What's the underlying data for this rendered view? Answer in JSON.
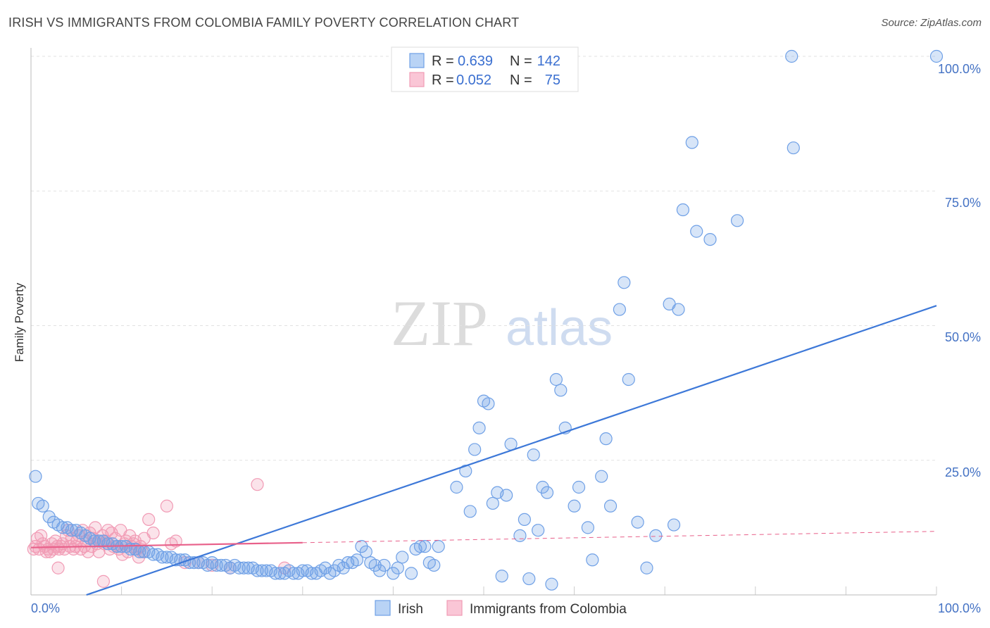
{
  "title": "IRISH VS IMMIGRANTS FROM COLOMBIA FAMILY POVERTY CORRELATION CHART",
  "source": "Source: ZipAtlas.com",
  "watermark": {
    "zip": "ZIP",
    "atlas": "atlas"
  },
  "chart_data": {
    "type": "scatter",
    "title": "IRISH VS IMMIGRANTS FROM COLOMBIA FAMILY POVERTY CORRELATION CHART",
    "xlabel": "",
    "ylabel": "Family Poverty",
    "xlim": [
      0,
      100
    ],
    "ylim": [
      0,
      100
    ],
    "x_tick_labels": [
      "0.0%",
      "100.0%"
    ],
    "y_tick_labels": [
      {
        "value": 25,
        "label": "25.0%"
      },
      {
        "value": 50,
        "label": "50.0%"
      },
      {
        "value": 75,
        "label": "75.0%"
      },
      {
        "value": 100,
        "label": "100.0%"
      }
    ],
    "grid": true,
    "legend": {
      "position": "top-center",
      "entries": [
        {
          "name": "Irish",
          "r_label": "R =",
          "r": "0.639",
          "n_label": "N =",
          "n": "142"
        },
        {
          "name": "Immigrants from Colombia",
          "r_label": "R =",
          "r": "0.052",
          "n_label": "N =",
          "n": "75"
        }
      ]
    },
    "colors": {
      "irish": "#6fa0e6",
      "irish_line": "#3d78d8",
      "colombia": "#f19bb5",
      "colombia_line": "#e8608a",
      "tick": "#4472c4"
    },
    "series": [
      {
        "name": "Irish",
        "trend": {
          "x": [
            0,
            100
          ],
          "y": [
            -3.5,
            53.7
          ],
          "solid_until": 100
        },
        "points": [
          [
            0.5,
            22
          ],
          [
            0.8,
            17
          ],
          [
            1.3,
            16.5
          ],
          [
            2,
            14.5
          ],
          [
            2.5,
            13.5
          ],
          [
            3,
            13
          ],
          [
            3.5,
            12.5
          ],
          [
            4,
            12.5
          ],
          [
            4.5,
            12
          ],
          [
            5,
            12
          ],
          [
            5.5,
            11.5
          ],
          [
            6,
            11
          ],
          [
            6.5,
            10.5
          ],
          [
            7,
            10
          ],
          [
            7.5,
            10
          ],
          [
            8,
            10
          ],
          [
            8.5,
            9.5
          ],
          [
            9,
            9.5
          ],
          [
            9.5,
            9
          ],
          [
            10,
            9
          ],
          [
            10.5,
            9
          ],
          [
            11,
            8.5
          ],
          [
            11.5,
            8.5
          ],
          [
            12,
            8
          ],
          [
            12.5,
            8
          ],
          [
            13,
            8
          ],
          [
            13.5,
            7.5
          ],
          [
            14,
            7.5
          ],
          [
            14.5,
            7
          ],
          [
            15,
            7
          ],
          [
            15.5,
            7
          ],
          [
            16,
            6.5
          ],
          [
            16.5,
            6.5
          ],
          [
            17,
            6.5
          ],
          [
            17.5,
            6
          ],
          [
            18,
            6
          ],
          [
            18.5,
            6
          ],
          [
            19,
            6
          ],
          [
            19.5,
            5.5
          ],
          [
            20,
            6
          ],
          [
            20.5,
            5.5
          ],
          [
            21,
            5.5
          ],
          [
            21.5,
            5.5
          ],
          [
            22,
            5
          ],
          [
            22.5,
            5.5
          ],
          [
            23,
            5
          ],
          [
            23.5,
            5
          ],
          [
            24,
            5
          ],
          [
            24.5,
            5
          ],
          [
            25,
            4.5
          ],
          [
            25.5,
            4.5
          ],
          [
            26,
            4.5
          ],
          [
            26.5,
            4.5
          ],
          [
            27,
            4
          ],
          [
            27.5,
            4
          ],
          [
            28,
            4
          ],
          [
            28.5,
            4.5
          ],
          [
            29,
            4
          ],
          [
            29.5,
            4
          ],
          [
            30,
            4.5
          ],
          [
            30.5,
            4.5
          ],
          [
            31,
            4
          ],
          [
            31.5,
            4
          ],
          [
            32,
            4.5
          ],
          [
            32.5,
            5
          ],
          [
            33,
            4
          ],
          [
            33.5,
            4.5
          ],
          [
            34,
            5.5
          ],
          [
            34.5,
            5
          ],
          [
            35,
            6
          ],
          [
            35.5,
            6
          ],
          [
            36,
            6.5
          ],
          [
            36.5,
            9
          ],
          [
            37,
            8
          ],
          [
            37.5,
            6
          ],
          [
            38,
            5.5
          ],
          [
            38.5,
            4.5
          ],
          [
            39,
            5.5
          ],
          [
            40,
            4
          ],
          [
            40.5,
            5
          ],
          [
            41,
            7
          ],
          [
            42,
            4
          ],
          [
            42.5,
            8.5
          ],
          [
            43,
            9
          ],
          [
            43.5,
            9
          ],
          [
            44,
            6
          ],
          [
            44.5,
            5.5
          ],
          [
            45,
            9
          ],
          [
            47,
            20
          ],
          [
            48,
            23
          ],
          [
            48.5,
            15.5
          ],
          [
            49,
            27
          ],
          [
            49.5,
            31
          ],
          [
            50,
            36
          ],
          [
            50.5,
            35.5
          ],
          [
            51,
            17
          ],
          [
            51.5,
            19
          ],
          [
            52,
            3.5
          ],
          [
            52.5,
            18.5
          ],
          [
            53,
            28
          ],
          [
            54,
            11
          ],
          [
            54.5,
            14
          ],
          [
            55,
            3
          ],
          [
            55.5,
            26
          ],
          [
            56,
            12
          ],
          [
            56.5,
            20
          ],
          [
            57,
            19
          ],
          [
            57.5,
            2
          ],
          [
            58,
            40
          ],
          [
            58.5,
            38
          ],
          [
            59,
            31
          ],
          [
            60,
            16.5
          ],
          [
            60.5,
            20
          ],
          [
            61.5,
            12.5
          ],
          [
            62,
            6.5
          ],
          [
            63,
            22
          ],
          [
            63.5,
            29
          ],
          [
            64,
            16.5
          ],
          [
            65,
            53
          ],
          [
            65.5,
            58
          ],
          [
            66,
            40
          ],
          [
            67,
            13.5
          ],
          [
            68,
            5
          ],
          [
            69,
            11
          ],
          [
            70.5,
            54
          ],
          [
            71,
            13
          ],
          [
            71.5,
            53
          ],
          [
            72,
            71.5
          ],
          [
            73,
            84
          ],
          [
            73.5,
            67.5
          ],
          [
            75,
            66
          ],
          [
            78,
            69.5
          ],
          [
            84,
            100
          ],
          [
            84.2,
            83
          ],
          [
            100,
            100
          ]
        ]
      },
      {
        "name": "Immigrants from Colombia",
        "trend": {
          "x": [
            0,
            100
          ],
          "y": [
            8.8,
            11.8
          ],
          "solid_until": 30
        },
        "points": [
          [
            0.3,
            8.5
          ],
          [
            0.5,
            9
          ],
          [
            0.7,
            10.5
          ],
          [
            0.9,
            8.5
          ],
          [
            1.1,
            11
          ],
          [
            1.3,
            9.5
          ],
          [
            1.5,
            9
          ],
          [
            1.7,
            8
          ],
          [
            1.9,
            8.5
          ],
          [
            2.1,
            8
          ],
          [
            2.3,
            9.5
          ],
          [
            2.5,
            8.5
          ],
          [
            2.7,
            10
          ],
          [
            2.9,
            9
          ],
          [
            3.1,
            8.5
          ],
          [
            3.3,
            9
          ],
          [
            3.5,
            9.5
          ],
          [
            3.7,
            8.5
          ],
          [
            3.9,
            11
          ],
          [
            4.1,
            12
          ],
          [
            4.3,
            9
          ],
          [
            4.5,
            10.5
          ],
          [
            4.7,
            8.5
          ],
          [
            4.9,
            9
          ],
          [
            5.1,
            10
          ],
          [
            5.3,
            11
          ],
          [
            5.5,
            8.5
          ],
          [
            5.7,
            12
          ],
          [
            5.9,
            9
          ],
          [
            6.1,
            10
          ],
          [
            6.3,
            8
          ],
          [
            6.5,
            11.5
          ],
          [
            6.7,
            9
          ],
          [
            6.9,
            10.5
          ],
          [
            7.1,
            12.5
          ],
          [
            7.3,
            9.5
          ],
          [
            7.5,
            8
          ],
          [
            7.7,
            10
          ],
          [
            7.9,
            11
          ],
          [
            8.1,
            9.5
          ],
          [
            8.3,
            10
          ],
          [
            8.5,
            12
          ],
          [
            8.7,
            8.5
          ],
          [
            8.9,
            11.5
          ],
          [
            9.1,
            9
          ],
          [
            9.3,
            10.5
          ],
          [
            9.5,
            9
          ],
          [
            9.7,
            8.5
          ],
          [
            9.9,
            12
          ],
          [
            10.1,
            7.5
          ],
          [
            10.3,
            9.5
          ],
          [
            10.5,
            10
          ],
          [
            10.7,
            8
          ],
          [
            10.9,
            11
          ],
          [
            11.1,
            9
          ],
          [
            11.3,
            9.5
          ],
          [
            11.5,
            10
          ],
          [
            11.7,
            8.5
          ],
          [
            11.9,
            7
          ],
          [
            12.1,
            9
          ],
          [
            12.3,
            8
          ],
          [
            12.5,
            10.5
          ],
          [
            13,
            14
          ],
          [
            13.5,
            11.5
          ],
          [
            15,
            16.5
          ],
          [
            15.5,
            9.5
          ],
          [
            16,
            10
          ],
          [
            17,
            6
          ],
          [
            18.5,
            6
          ],
          [
            20,
            5.5
          ],
          [
            22,
            5
          ],
          [
            25,
            20.5
          ],
          [
            28,
            5
          ],
          [
            3,
            5
          ],
          [
            8,
            2.5
          ]
        ]
      }
    ]
  }
}
